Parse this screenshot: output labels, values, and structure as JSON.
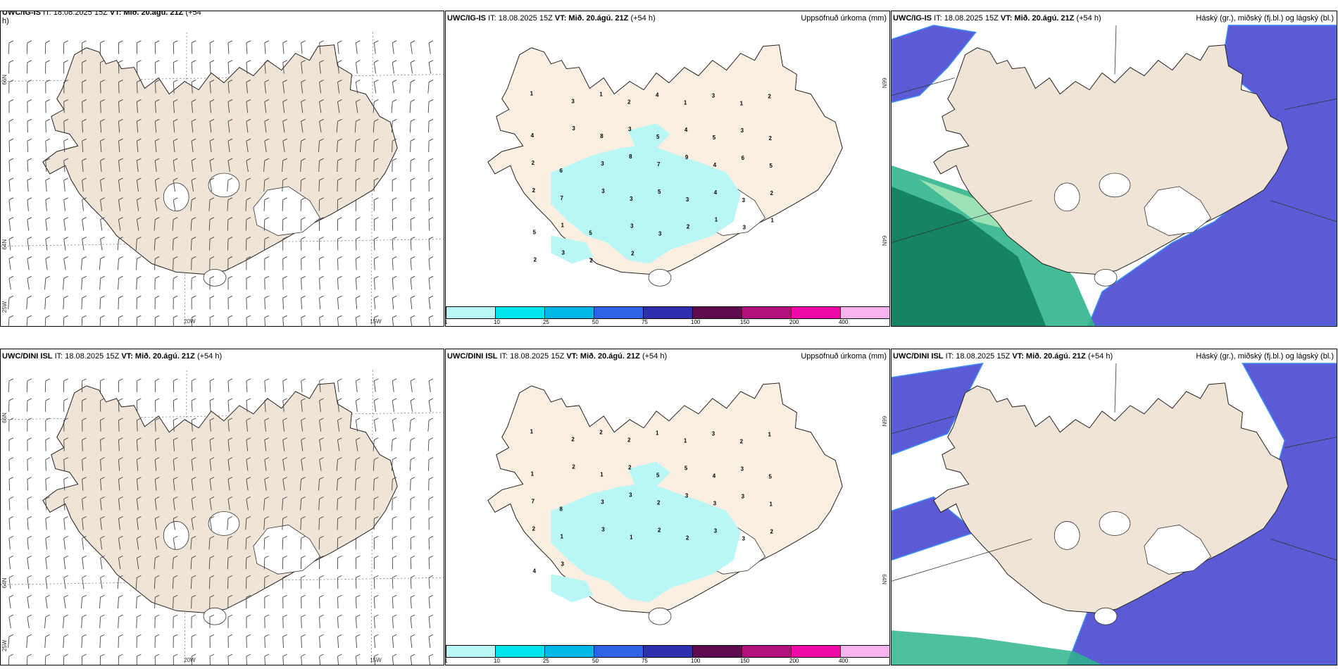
{
  "top": {
    "wind": {
      "model": "UWC/IG-IS",
      "it": "IT: 18.08.2025 15Z",
      "vt": "VT: Mið. 20.ágú. 21Z",
      "lead": "(+54",
      "lead2": "h)"
    },
    "precip": {
      "model": "UWC/IG-IS",
      "it": "IT: 18.08.2025 15Z",
      "vt": "VT: Mið. 20.ágú. 21Z",
      "lead": "(+54 h)",
      "right": "Uppsöfnuð úrkoma (mm)"
    },
    "cloud": {
      "model": "UWC/IG-IS",
      "it": "IT: 18.08.2025 15Z",
      "vt": "VT: Mið. 20.ágú. 21Z",
      "lead": "(+54 h)",
      "right": "Háský (gr.), miðský (fj.bl.) og lágský (bl.)"
    }
  },
  "bottom": {
    "wind": {
      "model": "UWC/DINI ISL",
      "it": "IT: 18.08.2025 15Z",
      "vt": "VT: Mið. 20.ágú. 21Z",
      "lead": "(+54 h)"
    },
    "precip": {
      "model": "UWC/DINI ISL",
      "it": "IT: 18.08.2025 15Z",
      "vt": "VT: Mið. 20.ágú. 21Z",
      "lead": "(+54 h)",
      "right": "Uppsöfnuð úrkoma (mm)"
    },
    "cloud": {
      "model": "UWC/DINI ISL",
      "it": "IT: 18.08.2025 15Z",
      "vt": "VT: Mið. 20.ágú. 21Z",
      "lead": "(+54 h)",
      "right": "Háský (gr.), miðský (fj.bl.) og lágský (bl.)"
    }
  },
  "axes": {
    "lat66": "66N",
    "lat64": "64N",
    "lon20": "20W",
    "lon15": "15W",
    "lon25": "25W"
  },
  "colorbar": {
    "colors": [
      "#b9f6f6",
      "#00e5ec",
      "#00b8e8",
      "#2f62e6",
      "#2d2fb0",
      "#5d0a4f",
      "#b0117f",
      "#ef0aa7",
      "#f6b3ee"
    ],
    "ticks": [
      "1",
      "10",
      "25",
      "50",
      "75",
      "100",
      "150",
      "200",
      "400"
    ]
  },
  "precip_labels_top": [
    "1",
    "3",
    "1",
    "2",
    "4",
    "1",
    "3",
    "1",
    "2",
    "4",
    "3",
    "8",
    "3",
    "5",
    "4",
    "5",
    "3",
    "2",
    "2",
    "6",
    "3",
    "8",
    "7",
    "9",
    "4",
    "6",
    "5",
    "2",
    "7",
    "3",
    "3",
    "5",
    "3",
    "4",
    "3",
    "2",
    "5",
    "1",
    "5",
    "3",
    "3",
    "2",
    "1",
    "3",
    "1",
    "2",
    "3",
    "2",
    "2"
  ],
  "precip_labels_bottom": [
    "1",
    "2",
    "2",
    "2",
    "1",
    "1",
    "3",
    "2",
    "1",
    "1",
    "2",
    "1",
    "2",
    "5",
    "5",
    "4",
    "3",
    "5",
    "7",
    "8",
    "3",
    "3",
    "2",
    "3",
    "3",
    "3",
    "1",
    "2",
    "1",
    "3",
    "1",
    "2",
    "2",
    "3",
    "3",
    "2",
    "4",
    "3"
  ]
}
